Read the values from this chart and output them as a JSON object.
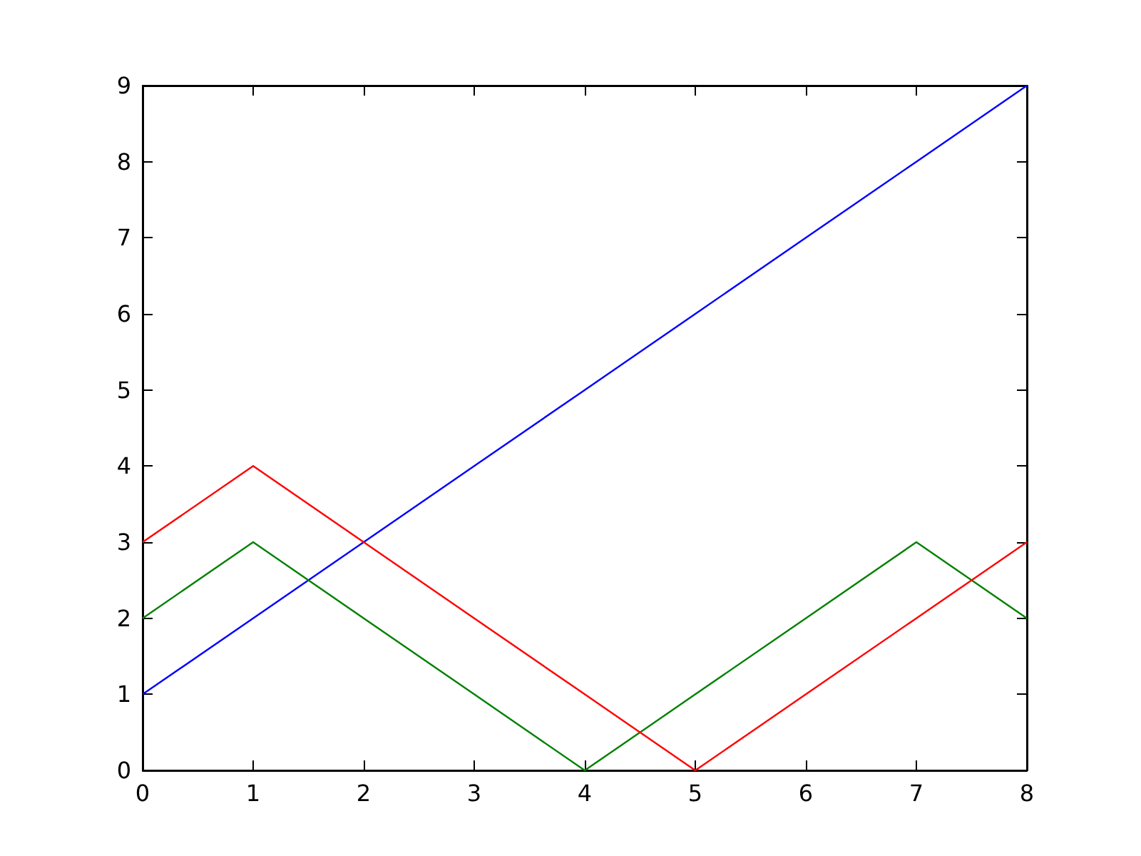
{
  "chart_data": {
    "type": "line",
    "x": [
      0,
      1,
      2,
      3,
      4,
      5,
      6,
      7,
      8
    ],
    "series": [
      {
        "color": "#0000ff",
        "values": [
          1,
          2,
          3,
          4,
          5,
          6,
          7,
          8,
          9
        ]
      },
      {
        "color": "#008000",
        "values": [
          2,
          3,
          2,
          1,
          0,
          1,
          2,
          3,
          2
        ]
      },
      {
        "color": "#ff0000",
        "values": [
          3,
          4,
          3,
          2,
          1,
          0,
          1,
          2,
          3
        ]
      }
    ],
    "xlim": [
      0,
      8
    ],
    "xticks": [
      0,
      1,
      2,
      3,
      4,
      5,
      6,
      7,
      8
    ],
    "ylim": [
      0,
      9
    ],
    "yticks": [
      0,
      1,
      2,
      3,
      4,
      5,
      6,
      7,
      8,
      9
    ],
    "grid": false,
    "marker": "none",
    "line_style": "solid"
  }
}
